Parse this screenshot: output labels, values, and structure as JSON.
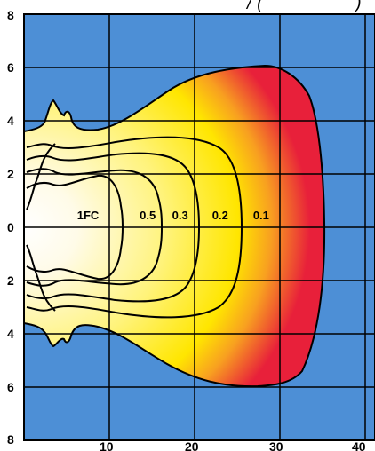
{
  "chart_data": {
    "type": "isofootcandle",
    "title_fragment": "/ (",
    "title_tail": ")",
    "x_ticks": [
      "10",
      "20",
      "30",
      "40"
    ],
    "y_ticks": [
      "8",
      "6",
      "4",
      "2",
      "0",
      "2",
      "4",
      "6",
      "8"
    ],
    "xlim": [
      0,
      40
    ],
    "ylim": [
      -8,
      8
    ],
    "grid": true,
    "contour_labels": [
      {
        "text": "1FC",
        "x": 7.5,
        "y": 0
      },
      {
        "text": "0.5",
        "x": 14.5,
        "y": 0
      },
      {
        "text": "0.3",
        "x": 18.3,
        "y": 0
      },
      {
        "text": "0.2",
        "x": 23.0,
        "y": 0
      },
      {
        "text": "0.1",
        "x": 27.8,
        "y": 0
      }
    ],
    "contours": [
      {
        "level": "0.1",
        "x_extent": 36,
        "y_half_width": 6
      },
      {
        "level": "0.2",
        "x_extent": 28.5,
        "y_half_width": 4.1
      },
      {
        "level": "0.3",
        "x_extent": 22,
        "y_half_width": 3.1
      },
      {
        "level": "0.5",
        "x_extent": 16,
        "y_half_width": 2.4
      },
      {
        "level": "1FC",
        "x_extent": 10.5,
        "y_half_width": 1.8
      }
    ],
    "colors": {
      "background": "#4d8fd6",
      "grid": "#000000",
      "fill_inner": "#fffbe8",
      "fill_mid": "#ffe600",
      "fill_outer": "#e8203a"
    }
  }
}
